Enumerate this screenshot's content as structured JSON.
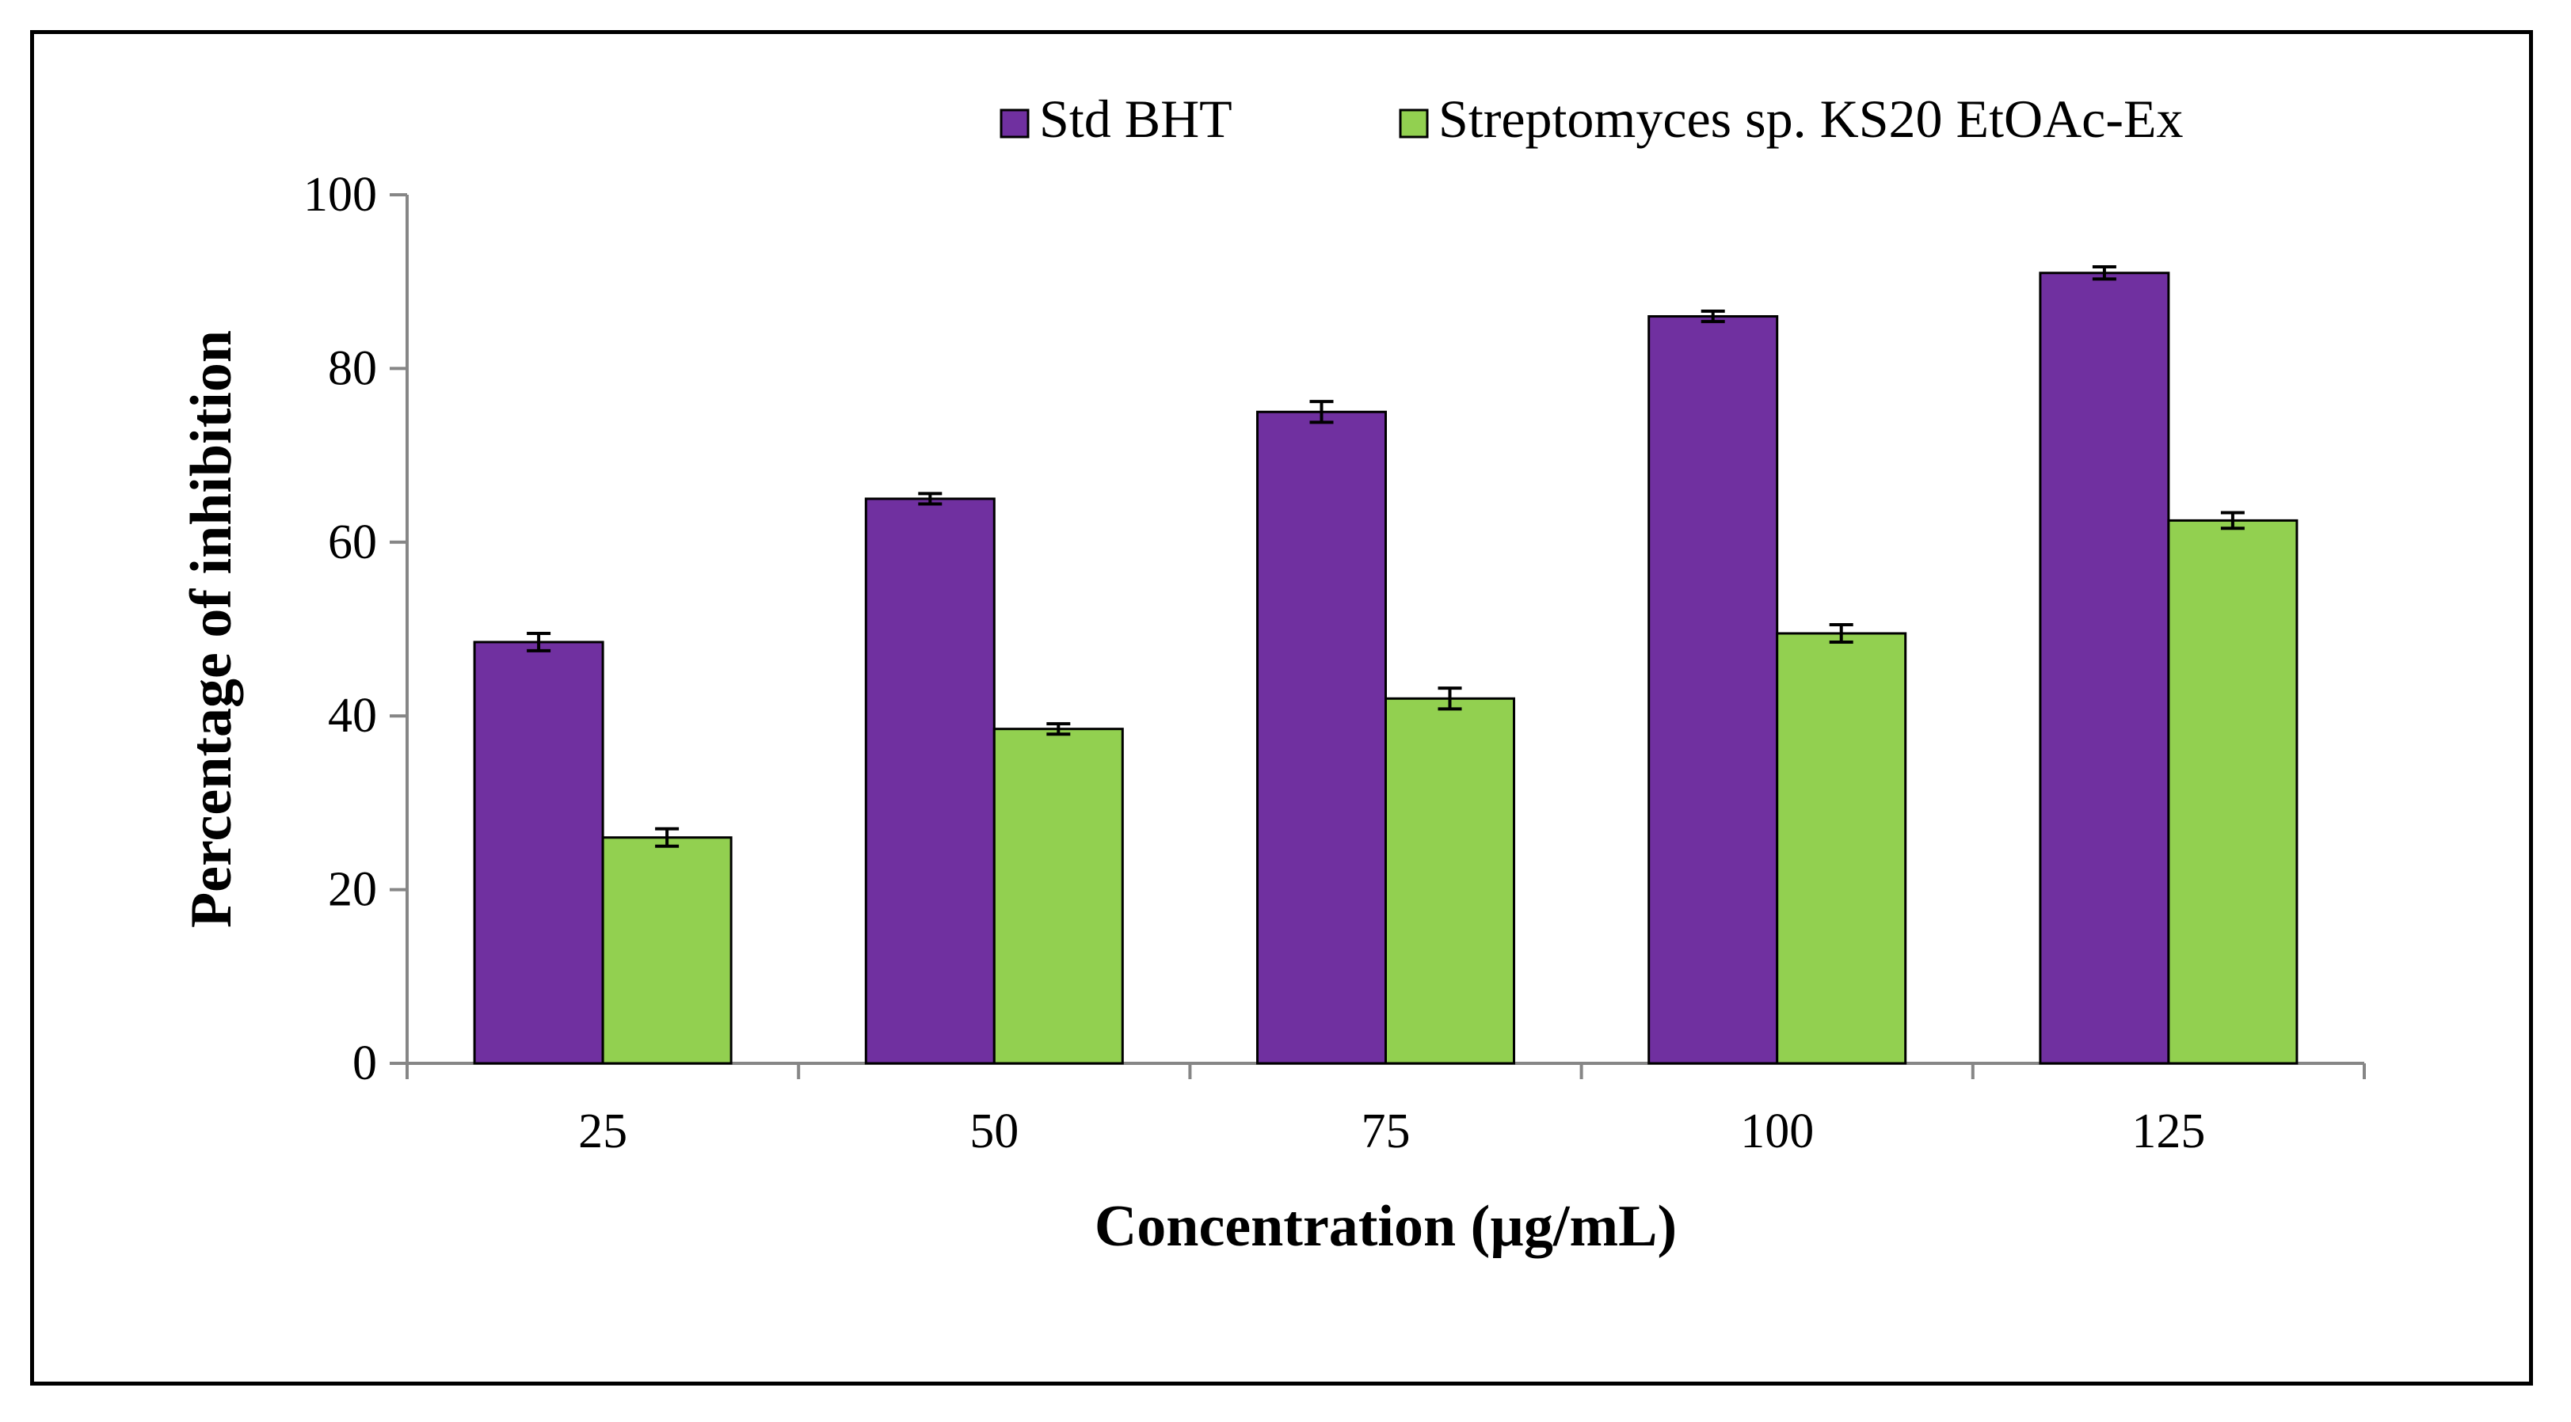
{
  "colors": {
    "std_bht": "#7030A0",
    "extract": "#92D050",
    "axis": "#868686",
    "outline": "#000000"
  },
  "chart_data": {
    "type": "bar",
    "title": "",
    "xlabel": "Concentration (µg/mL)",
    "ylabel": "Percentage of inhibition",
    "ylim": [
      0,
      100
    ],
    "yticks": [
      0,
      20,
      40,
      60,
      80,
      100
    ],
    "categories": [
      "25",
      "50",
      "75",
      "100",
      "125"
    ],
    "legend_position": "top-right",
    "series": [
      {
        "name": "Std BHT",
        "color_key": "std_bht",
        "values": [
          48.5,
          65,
          75,
          86,
          91
        ],
        "errors": [
          1.0,
          0.6,
          1.2,
          0.6,
          0.7
        ]
      },
      {
        "name": "Streptomyces sp. KS20 EtOAc-Ex",
        "color_key": "extract",
        "values": [
          26,
          38.5,
          42,
          49.5,
          62.5
        ],
        "errors": [
          1.0,
          0.6,
          1.2,
          1.0,
          0.9
        ]
      }
    ]
  }
}
